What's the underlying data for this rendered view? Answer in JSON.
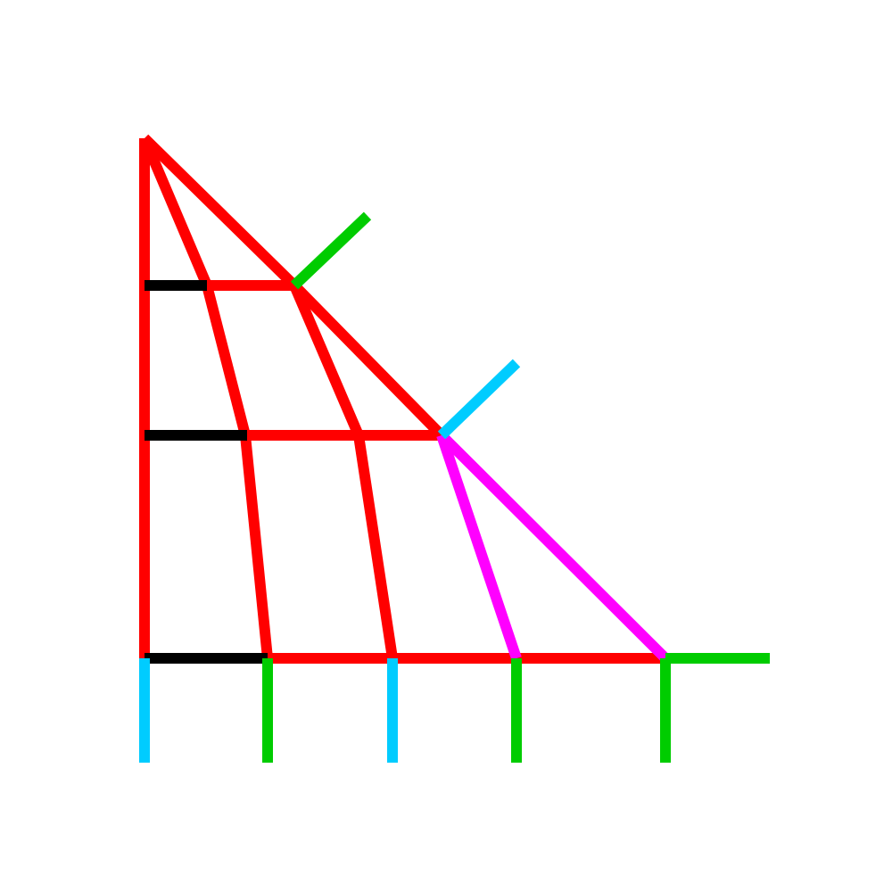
{
  "colors": {
    "background": "#ffffff",
    "frame": "#ff0000",
    "rung": "#000000",
    "branch_green": "#00cc00",
    "branch_cyan": "#00ccff",
    "branch_magenta": "#ff00ff"
  }
}
